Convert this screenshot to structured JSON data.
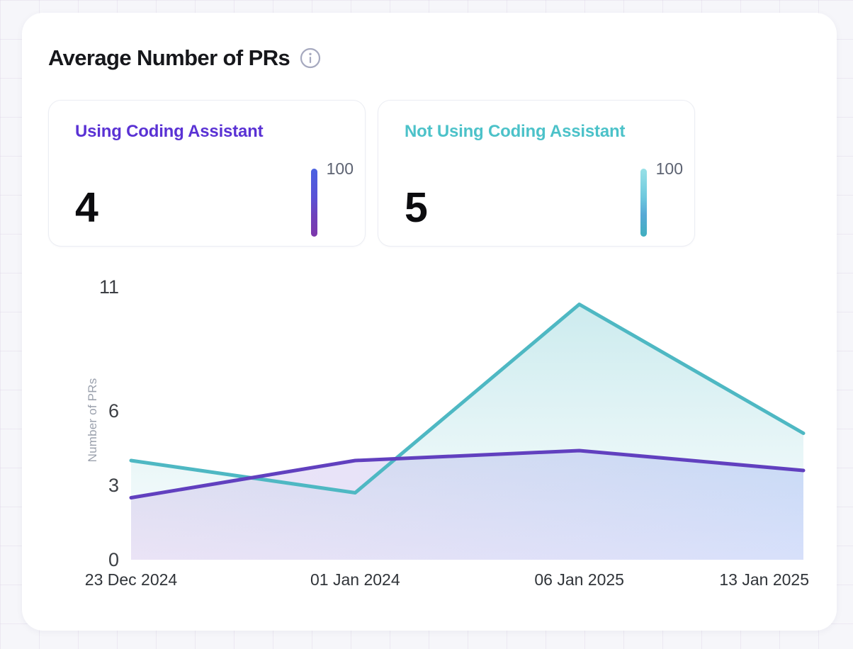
{
  "header": {
    "title": "Average Number of PRs",
    "info_icon": "info-icon",
    "info_icon_color": "#a6a9bf"
  },
  "stats": [
    {
      "label": "Using Coding Assistant",
      "value": "4",
      "gauge_max": "100",
      "color": "#5a32d4",
      "gauge_gradient": [
        "#4a61e1",
        "#5952d6",
        "#6d42bc",
        "#7d37ab"
      ]
    },
    {
      "label": "Not Using Coding Assistant",
      "value": "5",
      "gauge_max": "100",
      "color": "#4cc2c9",
      "gauge_gradient": [
        "#98e1e7",
        "#6ec9de",
        "#57a9d6",
        "#40afbf"
      ]
    }
  ],
  "chart_data": {
    "type": "area",
    "title": "Average Number of PRs",
    "categories": [
      "23 Dec 2024",
      "01 Jan 2024",
      "06 Jan 2025",
      "13 Jan 2025"
    ],
    "series": [
      {
        "name": "Not Using Coding Assistant",
        "values": [
          4,
          2.7,
          10.3,
          5.1
        ],
        "color": "#4eb8c3",
        "fill_from": "rgba(77,185,196,0.30)",
        "fill_to": "rgba(77,185,196,0.02)",
        "fill_direction": "vertical"
      },
      {
        "name": "Using Coding Assistant",
        "values": [
          2.5,
          4,
          4.4,
          3.6
        ],
        "color": "#6140bf",
        "fill_from": "rgba(150,98,205,0.17)",
        "fill_to": "rgba(100,130,240,0.24)",
        "fill_direction": "horizontal"
      }
    ],
    "xlabel": "",
    "ylabel": "Number of PRs",
    "yticks": [
      0,
      3,
      6,
      11
    ],
    "ylim": [
      0,
      11.2
    ],
    "grid": false,
    "legend": "none"
  }
}
